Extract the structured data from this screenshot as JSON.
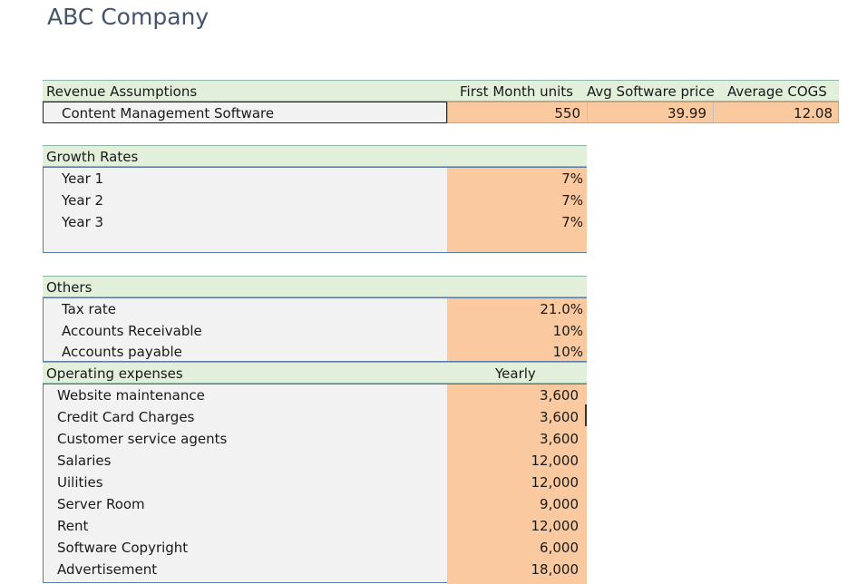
{
  "company": "ABC Company",
  "revenue": {
    "header": "Revenue Assumptions",
    "cols": [
      "First Month units",
      "Avg Software price",
      "Average COGS"
    ],
    "product": "Content Management Software",
    "values": [
      "550",
      "39.99",
      "12.08"
    ]
  },
  "growth": {
    "header": "Growth Rates",
    "rows": [
      {
        "label": "Year 1",
        "value": "7%"
      },
      {
        "label": "Year 2",
        "value": "7%"
      },
      {
        "label": "Year 3",
        "value": "7%"
      }
    ]
  },
  "others": {
    "header": "Others",
    "rows": [
      {
        "label": "Tax rate",
        "value": "21.0%"
      },
      {
        "label": "Accounts Receivable",
        "value": "10%"
      },
      {
        "label": "Accounts payable",
        "value": "10%"
      }
    ]
  },
  "opex": {
    "header": "Operating expenses",
    "col": "Yearly",
    "rows": [
      {
        "label": "Website maintenance",
        "value": "3,600"
      },
      {
        "label": "Credit Card Charges",
        "value": "3,600"
      },
      {
        "label": "Customer service agents",
        "value": "3,600"
      },
      {
        "label": "Salaries",
        "value": "12,000"
      },
      {
        "label": "Uilities",
        "value": "12,000"
      },
      {
        "label": "Server Room",
        "value": "9,000"
      },
      {
        "label": "Rent",
        "value": "12,000"
      },
      {
        "label": "Software Copyright",
        "value": "6,000"
      },
      {
        "label": "Advertisement",
        "value": "18,000"
      }
    ]
  }
}
